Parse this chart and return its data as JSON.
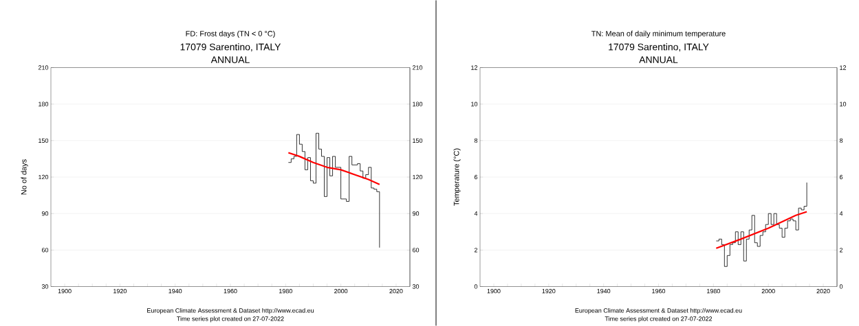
{
  "chart_data": [
    {
      "type": "step",
      "title": "FD: Frost days (TN < 0 °C)",
      "subtitle": "17079 Sarentino, ITALY",
      "ylabel": "No of days",
      "annotations": [
        "ANNUAL",
        "European Climate Assessment & Dataset  http://www.ecad.eu",
        "Time series plot created on 27-07-2022"
      ],
      "xlim": [
        1895,
        2025
      ],
      "xticks": [
        1900,
        {
          "value": 1905,
          "label": null
        },
        {
          "value": 1910,
          "label": null
        },
        {
          "value": 1915,
          "label": null
        },
        1920,
        {
          "value": 1925,
          "label": null
        },
        {
          "value": 1930,
          "label": null
        },
        {
          "value": 1935,
          "label": null
        },
        1940,
        {
          "value": 1945,
          "label": null
        },
        {
          "value": 1950,
          "label": null
        },
        {
          "value": 1955,
          "label": null
        },
        1960,
        {
          "value": 1965,
          "label": null
        },
        {
          "value": 1970,
          "label": null
        },
        {
          "value": 1975,
          "label": null
        },
        1980,
        {
          "value": 1985,
          "label": null
        },
        {
          "value": 1990,
          "label": null
        },
        {
          "value": 1995,
          "label": null
        },
        2000,
        {
          "value": 2005,
          "label": null
        },
        {
          "value": 2010,
          "label": null
        },
        {
          "value": 2015,
          "label": null
        },
        2020
      ],
      "ylim": [
        30,
        210
      ],
      "yticks": [
        30,
        60,
        90,
        120,
        150,
        180,
        210
      ],
      "y2lim": [
        30,
        210
      ],
      "y2ticks": [
        30,
        60,
        90,
        120,
        150,
        180,
        210
      ],
      "grid": "y",
      "marker": "none",
      "line_style": "solid",
      "series": [
        {
          "color": "#000000",
          "x": [
            1981,
            1982,
            1983,
            1984,
            1985,
            1986,
            1987,
            1988,
            1989,
            1990,
            1991,
            1992,
            1993,
            1994,
            1995,
            1996,
            1997,
            1998,
            1999,
            2000,
            2001,
            2002,
            2003,
            2004,
            2005,
            2006,
            2007,
            2008,
            2009,
            2010,
            2011,
            2012,
            2013,
            2014
          ],
          "values": [
            132,
            135,
            137,
            155,
            147,
            141,
            126,
            136,
            117,
            115,
            156,
            143,
            137,
            104,
            136,
            121,
            137,
            128,
            128,
            102,
            102,
            100,
            137,
            130,
            130,
            131,
            125,
            119,
            122,
            128,
            111,
            110,
            108,
            62
          ]
        },
        {
          "type": "line",
          "color": "#ff0000",
          "x": [
            1981,
            1985,
            1990,
            1995,
            2000,
            2005,
            2010,
            2014
          ],
          "values": [
            140,
            137,
            132,
            128,
            126,
            122,
            118,
            114
          ]
        }
      ]
    },
    {
      "type": "step",
      "title": "TN: Mean of daily minimum temperature",
      "subtitle": "17079 Sarentino, ITALY",
      "ylabel": "Temperature (°C)",
      "annotations": [
        "ANNUAL",
        "European Climate Assessment & Dataset  http://www.ecad.eu",
        "Time series plot created on 27-07-2022"
      ],
      "xlim": [
        1895,
        2025
      ],
      "xticks": [
        1900,
        {
          "value": 1905,
          "label": null
        },
        {
          "value": 1910,
          "label": null
        },
        {
          "value": 1915,
          "label": null
        },
        1920,
        {
          "value": 1925,
          "label": null
        },
        {
          "value": 1930,
          "label": null
        },
        {
          "value": 1935,
          "label": null
        },
        1940,
        {
          "value": 1945,
          "label": null
        },
        {
          "value": 1950,
          "label": null
        },
        {
          "value": 1955,
          "label": null
        },
        1960,
        {
          "value": 1965,
          "label": null
        },
        {
          "value": 1970,
          "label": null
        },
        {
          "value": 1975,
          "label": null
        },
        1980,
        {
          "value": 1985,
          "label": null
        },
        {
          "value": 1990,
          "label": null
        },
        {
          "value": 1995,
          "label": null
        },
        2000,
        {
          "value": 2005,
          "label": null
        },
        {
          "value": 2010,
          "label": null
        },
        {
          "value": 2015,
          "label": null
        },
        2020
      ],
      "ylim": [
        0,
        12
      ],
      "yticks": [
        0,
        2,
        4,
        6,
        8,
        10,
        12
      ],
      "y2lim": [
        0,
        12
      ],
      "y2ticks": [
        0,
        2,
        4,
        6,
        8,
        10,
        12
      ],
      "grid": "y",
      "marker": "none",
      "line_style": "solid",
      "series": [
        {
          "color": "#000000",
          "x": [
            1981,
            1982,
            1983,
            1984,
            1985,
            1986,
            1987,
            1988,
            1989,
            1990,
            1991,
            1992,
            1993,
            1994,
            1995,
            1996,
            1997,
            1998,
            1999,
            2000,
            2001,
            2002,
            2003,
            2004,
            2005,
            2006,
            2007,
            2008,
            2009,
            2010,
            2011,
            2012,
            2013,
            2014
          ],
          "values": [
            2.5,
            2.6,
            2.3,
            1.1,
            1.7,
            2.3,
            2.4,
            3.0,
            2.3,
            3.0,
            1.4,
            2.6,
            3.1,
            3.9,
            2.4,
            2.2,
            2.8,
            3.0,
            3.4,
            4.0,
            3.4,
            4.0,
            3.4,
            3.2,
            2.7,
            3.2,
            3.6,
            3.7,
            3.6,
            3.1,
            4.3,
            4.2,
            4.4,
            5.7
          ]
        },
        {
          "type": "line",
          "color": "#ff0000",
          "x": [
            1981,
            1990,
            2000,
            2010,
            2014
          ],
          "values": [
            2.1,
            2.6,
            3.2,
            3.9,
            4.1
          ]
        }
      ]
    }
  ]
}
